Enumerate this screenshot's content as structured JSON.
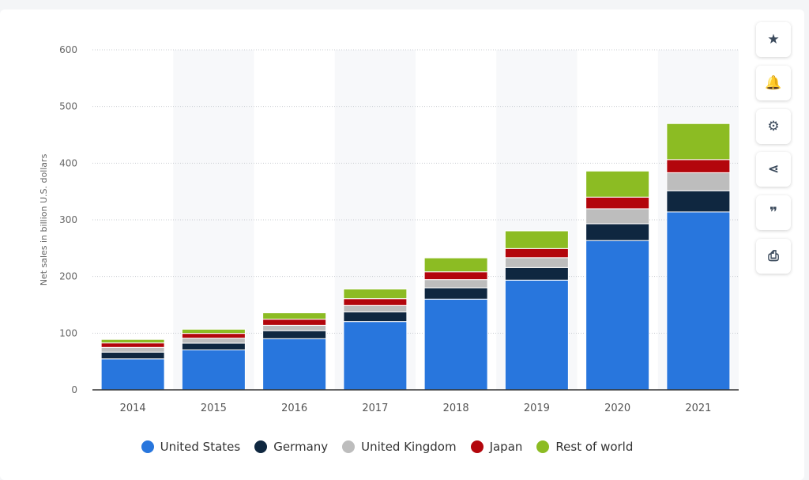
{
  "chart_data": {
    "type": "bar",
    "stacked": true,
    "categories": [
      "2014",
      "2015",
      "2016",
      "2017",
      "2018",
      "2019",
      "2020",
      "2021"
    ],
    "ylabel": "Net sales in billion U.S. dollars",
    "ylim": [
      0,
      600
    ],
    "yticks": [
      0,
      100,
      200,
      300,
      400,
      500,
      600
    ],
    "grid": true,
    "legend": "bottom",
    "series": [
      {
        "name": "United States",
        "color": "#2876dd",
        "values": [
          54.7,
          70.5,
          90.3,
          120.5,
          160.1,
          193.6,
          263.5,
          314.0
        ]
      },
      {
        "name": "Germany",
        "color": "#0f2740",
        "values": [
          11.9,
          11.8,
          14.1,
          17.0,
          19.9,
          22.2,
          29.6,
          37.3
        ]
      },
      {
        "name": "United Kingdom",
        "color": "#bdbdbd",
        "values": [
          8.3,
          9.0,
          9.5,
          11.4,
          14.5,
          17.5,
          26.5,
          31.9
        ]
      },
      {
        "name": "Japan",
        "color": "#b3060c",
        "values": [
          7.9,
          8.3,
          10.8,
          12.0,
          13.8,
          16.0,
          20.5,
          23.1
        ]
      },
      {
        "name": "Rest of world",
        "color": "#8cbc23",
        "values": [
          6.2,
          7.4,
          11.2,
          17.0,
          24.6,
          31.2,
          46.0,
          63.6
        ]
      }
    ]
  },
  "sidebar": [
    {
      "icon": "star-icon",
      "glyph": "★"
    },
    {
      "icon": "bell-icon",
      "glyph": "🔔"
    },
    {
      "icon": "gear-icon",
      "glyph": "⚙"
    },
    {
      "icon": "share-icon",
      "glyph": "⋖"
    },
    {
      "icon": "quote-icon",
      "glyph": "❞"
    },
    {
      "icon": "print-icon",
      "glyph": "⎙"
    }
  ]
}
